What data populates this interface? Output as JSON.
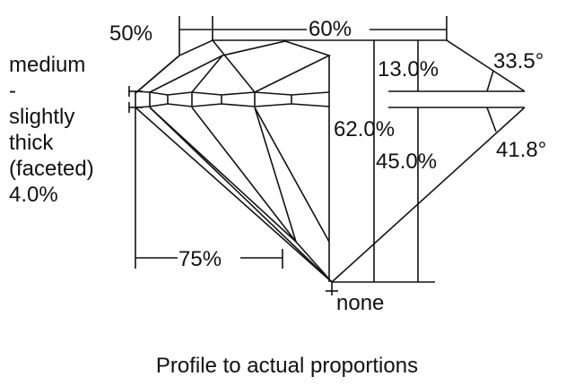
{
  "labels": {
    "star_width": "50%",
    "table": "60%",
    "girdle_lines": [
      "medium",
      "-",
      "slightly",
      "thick",
      "(faceted)",
      "4.0%"
    ],
    "crown_height": "13.0%",
    "crown_angle": "33.5°",
    "total_depth": "62.0%",
    "pavilion_depth": "45.0%",
    "pavilion_angle": "41.8°",
    "lower_half": "75%",
    "culet": "none"
  },
  "caption": "Profile to actual proportions"
}
